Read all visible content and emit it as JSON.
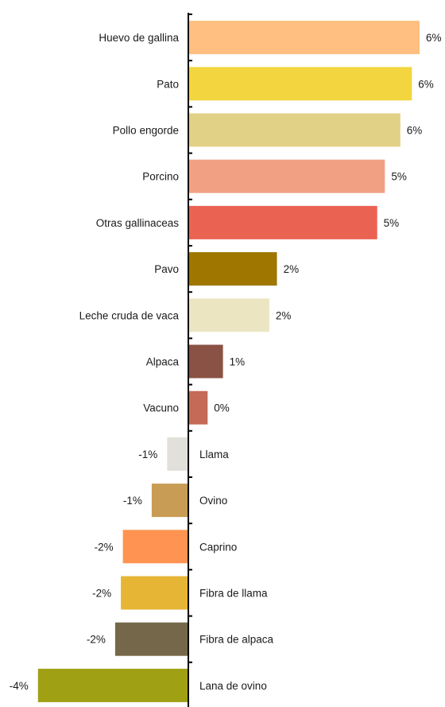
{
  "chart_data": {
    "type": "bar",
    "orientation": "horizontal",
    "title": "",
    "xlabel": "",
    "ylabel": "",
    "grid": false,
    "legend": "none",
    "categories": [
      "Huevo de gallina",
      "Pato",
      "Pollo engorde",
      "Porcino",
      "Otras gallinaceas",
      "Pavo",
      "Leche cruda de  vaca",
      "Alpaca",
      "Vacuno",
      "Llama",
      "Ovino",
      "Caprino",
      "Fibra  de llama",
      "Fibra  de alpaca",
      "Lana de ovino"
    ],
    "values": [
      6.0,
      5.8,
      5.5,
      5.1,
      4.9,
      2.3,
      2.1,
      0.9,
      0.5,
      -0.55,
      -0.95,
      -1.7,
      -1.75,
      -1.9,
      -3.9
    ],
    "value_labels": [
      "6%",
      "6%",
      "6%",
      "5%",
      "5%",
      "2%",
      "2%",
      "1%",
      "0%",
      "-1%",
      "-1%",
      "-2%",
      "-2%",
      "-2%",
      "-4%"
    ],
    "colors": [
      "#FFBF80",
      "#F2D53F",
      "#E1D186",
      "#F2A084",
      "#EA6352",
      "#9E7600",
      "#ECE5C2",
      "#8A5244",
      "#C56A56",
      "#E2E0DA",
      "#C89C55",
      "#FF9452",
      "#E6B535",
      "#75684A",
      "#A0A014"
    ],
    "xlim": [
      -4,
      6.2
    ]
  }
}
